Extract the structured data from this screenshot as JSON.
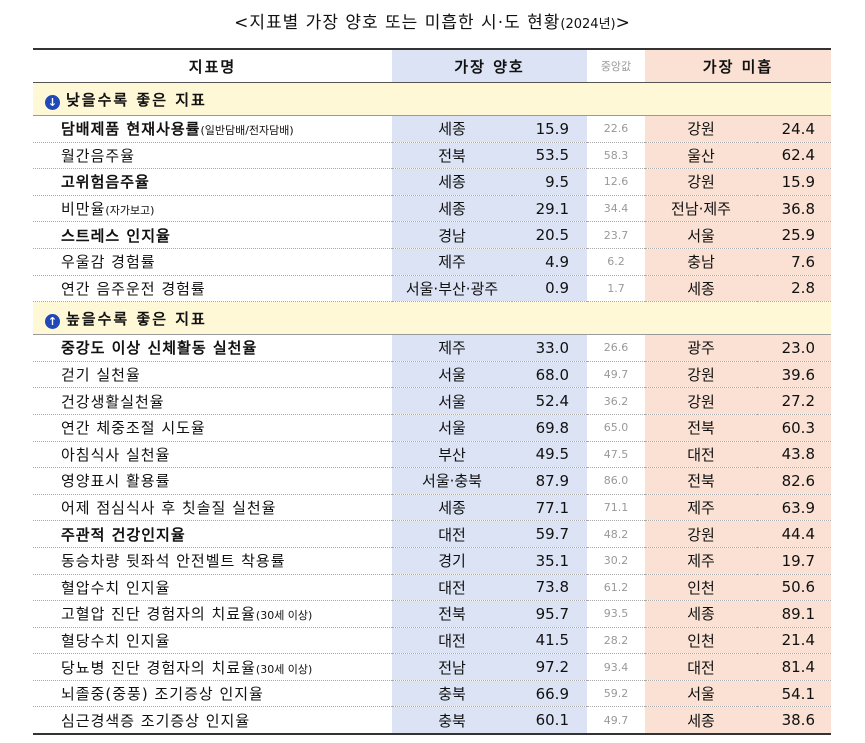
{
  "title": {
    "main": "<지표별 가장 양호 또는 미흡한 시·도 현황",
    "year": "(2024년)",
    "close": ">"
  },
  "header": {
    "name": "지표명",
    "best": "가장 양호",
    "median": "중앙값",
    "worst": "가장 미흡"
  },
  "sections": [
    {
      "label": "낮을수록 좋은 지표",
      "icon": "↓",
      "rows": [
        {
          "name": "담배제품 현재사용률",
          "note": "(일반담배/전자담배)",
          "bold": true,
          "best_region": "세종",
          "best_value": "15.9",
          "median": "22.6",
          "worst_region": "강원",
          "worst_value": "24.4"
        },
        {
          "name": "월간음주율",
          "note": "",
          "bold": false,
          "best_region": "전북",
          "best_value": "53.5",
          "median": "58.3",
          "worst_region": "울산",
          "worst_value": "62.4"
        },
        {
          "name": "고위험음주율",
          "note": "",
          "bold": true,
          "best_region": "세종",
          "best_value": "9.5",
          "median": "12.6",
          "worst_region": "강원",
          "worst_value": "15.9"
        },
        {
          "name": "비만율",
          "note": "(자가보고)",
          "bold": false,
          "best_region": "세종",
          "best_value": "29.1",
          "median": "34.4",
          "worst_region": "전남·제주",
          "worst_value": "36.8"
        },
        {
          "name": "스트레스 인지율",
          "note": "",
          "bold": true,
          "best_region": "경남",
          "best_value": "20.5",
          "median": "23.7",
          "worst_region": "서울",
          "worst_value": "25.9"
        },
        {
          "name": "우울감 경험률",
          "note": "",
          "bold": false,
          "best_region": "제주",
          "best_value": "4.9",
          "median": "6.2",
          "worst_region": "충남",
          "worst_value": "7.6"
        },
        {
          "name": "연간 음주운전 경험률",
          "note": "",
          "bold": false,
          "best_region": "서울·부산·광주",
          "best_value": "0.9",
          "median": "1.7",
          "worst_region": "세종",
          "worst_value": "2.8"
        }
      ]
    },
    {
      "label": "높을수록 좋은 지표",
      "icon": "↑",
      "rows": [
        {
          "name": "중강도 이상 신체활동 실천율",
          "note": "",
          "bold": true,
          "best_region": "제주",
          "best_value": "33.0",
          "median": "26.6",
          "worst_region": "광주",
          "worst_value": "23.0"
        },
        {
          "name": "걷기 실천율",
          "note": "",
          "bold": false,
          "best_region": "서울",
          "best_value": "68.0",
          "median": "49.7",
          "worst_region": "강원",
          "worst_value": "39.6"
        },
        {
          "name": "건강생활실천율",
          "note": "",
          "bold": false,
          "best_region": "서울",
          "best_value": "52.4",
          "median": "36.2",
          "worst_region": "강원",
          "worst_value": "27.2"
        },
        {
          "name": "연간 체중조절 시도율",
          "note": "",
          "bold": false,
          "best_region": "서울",
          "best_value": "69.8",
          "median": "65.0",
          "worst_region": "전북",
          "worst_value": "60.3"
        },
        {
          "name": "아침식사 실천율",
          "note": "",
          "bold": false,
          "best_region": "부산",
          "best_value": "49.5",
          "median": "47.5",
          "worst_region": "대전",
          "worst_value": "43.8"
        },
        {
          "name": "영양표시 활용률",
          "note": "",
          "bold": false,
          "best_region": "서울·충북",
          "best_value": "87.9",
          "median": "86.0",
          "worst_region": "전북",
          "worst_value": "82.6"
        },
        {
          "name": "어제 점심식사 후 칫솔질 실천율",
          "note": "",
          "bold": false,
          "best_region": "세종",
          "best_value": "77.1",
          "median": "71.1",
          "worst_region": "제주",
          "worst_value": "63.9"
        },
        {
          "name": "주관적 건강인지율",
          "note": "",
          "bold": true,
          "best_region": "대전",
          "best_value": "59.7",
          "median": "48.2",
          "worst_region": "강원",
          "worst_value": "44.4"
        },
        {
          "name": "동승차량 뒷좌석 안전벨트 착용률",
          "note": "",
          "bold": false,
          "best_region": "경기",
          "best_value": "35.1",
          "median": "30.2",
          "worst_region": "제주",
          "worst_value": "19.7"
        },
        {
          "name": "혈압수치 인지율",
          "note": "",
          "bold": false,
          "best_region": "대전",
          "best_value": "73.8",
          "median": "61.2",
          "worst_region": "인천",
          "worst_value": "50.6"
        },
        {
          "name": "고혈압 진단 경험자의 치료율",
          "note": "(30세 이상)",
          "bold": false,
          "best_region": "전북",
          "best_value": "95.7",
          "median": "93.5",
          "worst_region": "세종",
          "worst_value": "89.1"
        },
        {
          "name": "혈당수치 인지율",
          "note": "",
          "bold": false,
          "best_region": "대전",
          "best_value": "41.5",
          "median": "28.2",
          "worst_region": "인천",
          "worst_value": "21.4"
        },
        {
          "name": "당뇨병 진단 경험자의 치료율",
          "note": "(30세 이상)",
          "bold": false,
          "best_region": "전남",
          "best_value": "97.2",
          "median": "93.4",
          "worst_region": "대전",
          "worst_value": "81.4"
        },
        {
          "name": "뇌졸중(중풍) 조기증상 인지율",
          "note": "",
          "bold": false,
          "best_region": "충북",
          "best_value": "66.9",
          "median": "59.2",
          "worst_region": "서울",
          "worst_value": "54.1"
        },
        {
          "name": "심근경색증 조기증상 인지율",
          "note": "",
          "bold": false,
          "best_region": "충북",
          "best_value": "60.1",
          "median": "49.7",
          "worst_region": "세종",
          "worst_value": "38.6"
        }
      ]
    }
  ]
}
